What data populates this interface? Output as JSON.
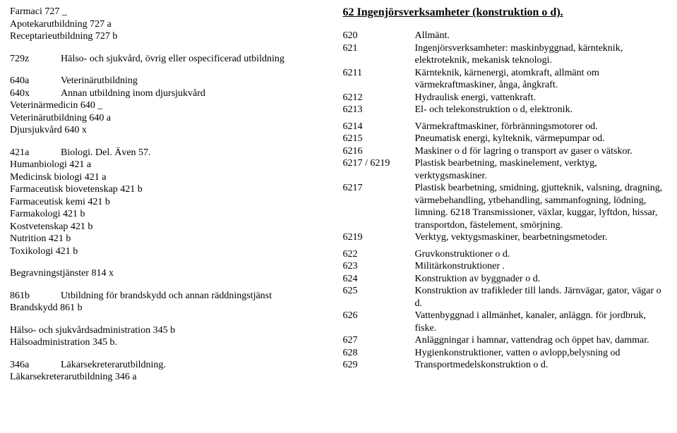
{
  "left": {
    "block1": {
      "l1": "Farmaci 727 _",
      "l2": "Apotekarutbildning 727 a",
      "l3": "Receptarieutbildning 727 b"
    },
    "block2": {
      "code": "729z",
      "text": "Hälso- och sjukvård, övrig eller ospecificerad utbildning"
    },
    "block3": {
      "l1_code": "640a",
      "l1_text": "Veterinärutbildning",
      "l2_code": "640x",
      "l2_text": "Annan utbildning inom djursjukvård",
      "l3": "Veterinärmedicin 640 _",
      "l4": "Veterinärutbildning 640 a",
      "l5": "Djursjukvård 640 x"
    },
    "block4": {
      "l1_code": "421a",
      "l1_text": "Biologi. Del. Även 57.",
      "l2": "Humanbiologi 421 a",
      "l3": "Medicinsk biologi 421 a",
      "l4": "Farmaceutisk biovetenskap 421 b",
      "l5": "Farmaceutisk kemi 421 b",
      "l6": "Farmakologi 421 b",
      "l7": "Kostvetenskap 421 b",
      "l8": "Nutrition 421 b",
      "l9": "Toxikologi 421 b"
    },
    "block5": "Begravningstjänster 814 x",
    "block6": {
      "l1_code": "861b",
      "l1_text": "Utbildning för brandskydd och annan räddningstjänst",
      "l2": "Brandskydd 861 b"
    },
    "block7": {
      "l1": "Hälso- och sjukvårdsadministration 345 b",
      "l2": "Hälsoadministration 345 b."
    },
    "block8": {
      "l1_code": "346a",
      "l1_text": "Läkarsekreterarutbildning.",
      "l2": "Läkarsekreterarutbildning 346 a"
    }
  },
  "right": {
    "heading": "62 Ingenjörsverksamheter (konstruktion o d).",
    "rows": [
      {
        "code": "620",
        "text": "Allmänt."
      },
      {
        "code": "621",
        "text": "Ingenjörsverksamheter: maskinbyggnad, kärnteknik, elektroteknik, mekanisk teknologi."
      },
      {
        "code": "6211",
        "text": "Kärnteknik, kärnenergi, atomkraft, allmänt om värmekraftmaskiner, ånga, ångkraft."
      },
      {
        "code": "6212",
        "text": "Hydraulisk energi, vattenkraft."
      },
      {
        "code": "6213",
        "text": "El- och telekonstruktion o d, elektronik."
      },
      {
        "code": "6214",
        "text": "Värmekraftmaskiner, förbränningsmotorer od."
      },
      {
        "code": "6215",
        "text": "Pneumatisk energi, kylteknik, värmepumpar od."
      },
      {
        "code": "6216",
        "text": "Maskiner o d för lagring o transport av gaser o vätskor."
      },
      {
        "code": "6217 / 6219",
        "text": "Plastisk bearbetning, maskinelement, verktyg, verktygsmaskiner."
      },
      {
        "code": "6217",
        "text": "Plastisk bearbetning, smidning, gjutteknik, valsning, dragning, värmebehandling, ytbehandling, sammanfogning, lödning, limning. 6218 Transmissioner, växlar, kuggar, lyftdon, hissar, transportdon, fästelement, smörjning."
      },
      {
        "code": "6219",
        "text": "Verktyg, vektygsmaskiner, bearbetningsmetoder."
      },
      {
        "code": "622",
        "text": "Gruvkonstruktioner o d."
      },
      {
        "code": "623",
        "text": "Militärkonstruktioner ."
      },
      {
        "code": "624",
        "text": "Konstruktion av byggnader o d."
      },
      {
        "code": "625",
        "text": "Konstruktion av trafikleder till lands. Järnvägar, gator, vägar o d."
      },
      {
        "code": "626",
        "text": "Vattenbyggnad i allmänhet, kanaler, anläggn. för jordbruk, fiske."
      },
      {
        "code": "627",
        "text": "Anläggningar i hamnar, vattendrag och öppet hav, dammar."
      },
      {
        "code": "628",
        "text": "Hygienkonstruktioner, vatten o avlopp,belysning od"
      },
      {
        "code": "629",
        "text": "Transportmedelskonstruktion o d."
      }
    ]
  }
}
